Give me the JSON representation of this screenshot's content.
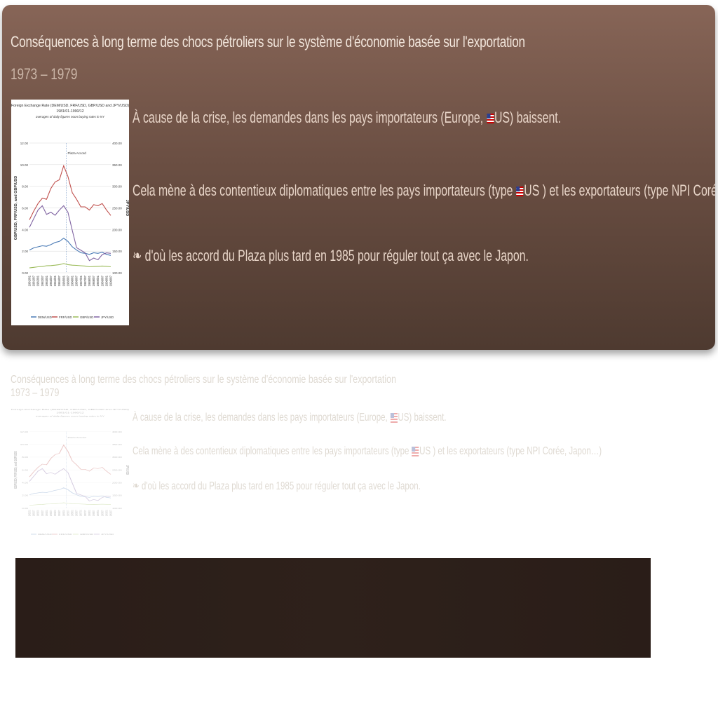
{
  "slide": {
    "title": "Conséquences à long terme des chocs pétroliers sur le système d'économie basée sur l'exportation",
    "subtitle": "1973 – 1979",
    "bullets": [
      {
        "pre": "À cause de la crise, les demandes dans les pays importateurs (Europe, ",
        "flag": "US",
        "post": ") baissent."
      },
      {
        "pre": "Cela mène à des contentieux diplomatiques entre les pays importateurs (type ",
        "flag": "US",
        "post": " ) et les exportateurs (type NPI Corée, Japon…)"
      },
      {
        "marker": "❧",
        "text": " d'où les accord du Plaza plus tard en 1985 pour réguler tout ça avec le  Japon."
      }
    ]
  },
  "chart_data": {
    "type": "line",
    "title": "Foreign Exchange Rate (DEM/USD, FRF/USD, GBP/USD and JPY/USD)",
    "subtitle": "1981/01-1990/12",
    "note": "averages of daily figures noon buying rates in NY",
    "annotation": "Plaza Accord",
    "ylabel": "GBP/USD, FRF/USD, and GBP/USD",
    "y2label": "JPY/USD",
    "ylim": [
      0,
      12
    ],
    "y2lim": [
      100,
      400
    ],
    "yticks": [
      "0.00",
      "2.00",
      "4.00",
      "6.00",
      "8.00",
      "10.00",
      "12.00"
    ],
    "y2ticks": [
      "100.00",
      "150.00",
      "200.00",
      "250.00",
      "300.00",
      "350.00",
      "400.00"
    ],
    "x": [
      "1981/01",
      "1981/07",
      "1982/01",
      "1982/07",
      "1983/01",
      "1983/07",
      "1984/01",
      "1984/07",
      "1985/01",
      "1985/07",
      "1986/01",
      "1986/07",
      "1987/01",
      "1987/07",
      "1988/01",
      "1988/07",
      "1989/01",
      "1989/07",
      "1990/01",
      "1990/07"
    ],
    "series": [
      {
        "name": "DEM/USD",
        "color": "#4a7ab5",
        "values": [
          2.1,
          2.3,
          2.4,
          2.5,
          2.45,
          2.6,
          2.8,
          2.9,
          3.2,
          2.9,
          2.4,
          2.1,
          1.85,
          1.8,
          1.7,
          1.85,
          1.8,
          1.9,
          1.7,
          1.6
        ]
      },
      {
        "name": "FRF/USD",
        "color": "#c0504d",
        "values": [
          4.9,
          5.7,
          6.4,
          6.9,
          6.8,
          7.8,
          8.4,
          8.6,
          9.9,
          8.9,
          7.4,
          6.8,
          6.1,
          6.1,
          5.8,
          6.3,
          6.2,
          6.4,
          5.8,
          5.3
        ]
      },
      {
        "name": "GBP/USD",
        "color": "#9bbb59",
        "values": [
          0.45,
          0.5,
          0.55,
          0.58,
          0.65,
          0.66,
          0.7,
          0.75,
          0.85,
          0.75,
          0.7,
          0.68,
          0.65,
          0.62,
          0.55,
          0.58,
          0.6,
          0.62,
          0.6,
          0.55
        ]
      },
      {
        "name": "JPY/USD",
        "color": "#8064a2",
        "values": [
          205,
          225,
          245,
          255,
          235,
          240,
          233,
          245,
          255,
          240,
          198,
          158,
          152,
          146,
          128,
          134,
          130,
          142,
          146,
          145
        ]
      }
    ]
  }
}
